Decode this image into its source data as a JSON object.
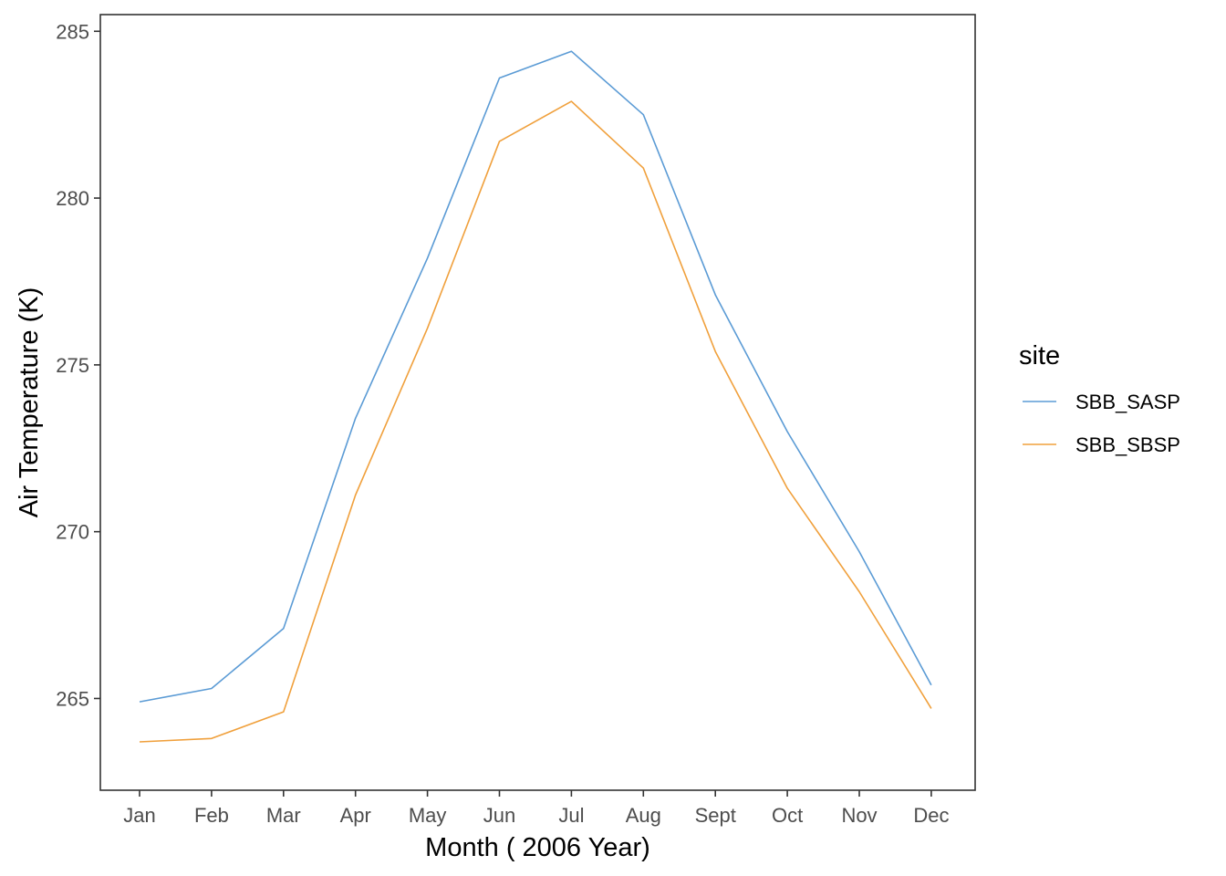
{
  "chart_data": {
    "type": "line",
    "title": "",
    "xlabel": "Month ( 2006 Year)",
    "ylabel": "Air Temperature (K)",
    "categories": [
      "Jan",
      "Feb",
      "Mar",
      "Apr",
      "May",
      "Jun",
      "Jul",
      "Aug",
      "Sept",
      "Oct",
      "Nov",
      "Dec"
    ],
    "yticks": [
      265,
      270,
      275,
      280,
      285
    ],
    "ylim": [
      262.25,
      285.5
    ],
    "grid": false,
    "legend": {
      "title": "site",
      "position": "right"
    },
    "series": [
      {
        "name": "SBB_SASP",
        "color": "#5b9bd5",
        "values": [
          264.9,
          265.3,
          267.1,
          273.4,
          278.2,
          283.6,
          284.4,
          282.5,
          277.1,
          273.0,
          269.4,
          265.4
        ]
      },
      {
        "name": "SBB_SBSP",
        "color": "#f0a03c",
        "values": [
          263.7,
          263.8,
          264.6,
          271.1,
          276.1,
          281.7,
          282.9,
          280.9,
          275.4,
          271.3,
          268.2,
          264.7
        ]
      }
    ]
  }
}
